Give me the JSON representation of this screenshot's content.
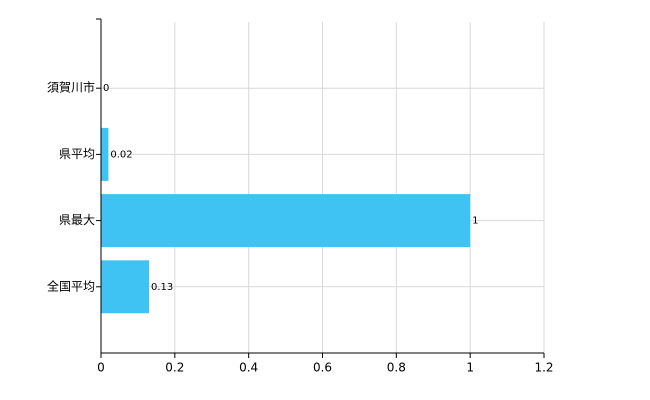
{
  "chart_data": {
    "type": "hbar",
    "categories": [
      "須賀川市",
      "県平均",
      "県最大",
      "全国平均"
    ],
    "values": [
      0,
      0.02,
      1,
      0.13
    ],
    "color": "#3fc3f3",
    "xlim": [
      0,
      1.2
    ],
    "xticks": [
      0,
      0.2,
      0.4,
      0.6,
      0.8,
      1,
      1.2
    ],
    "grid": true
  }
}
